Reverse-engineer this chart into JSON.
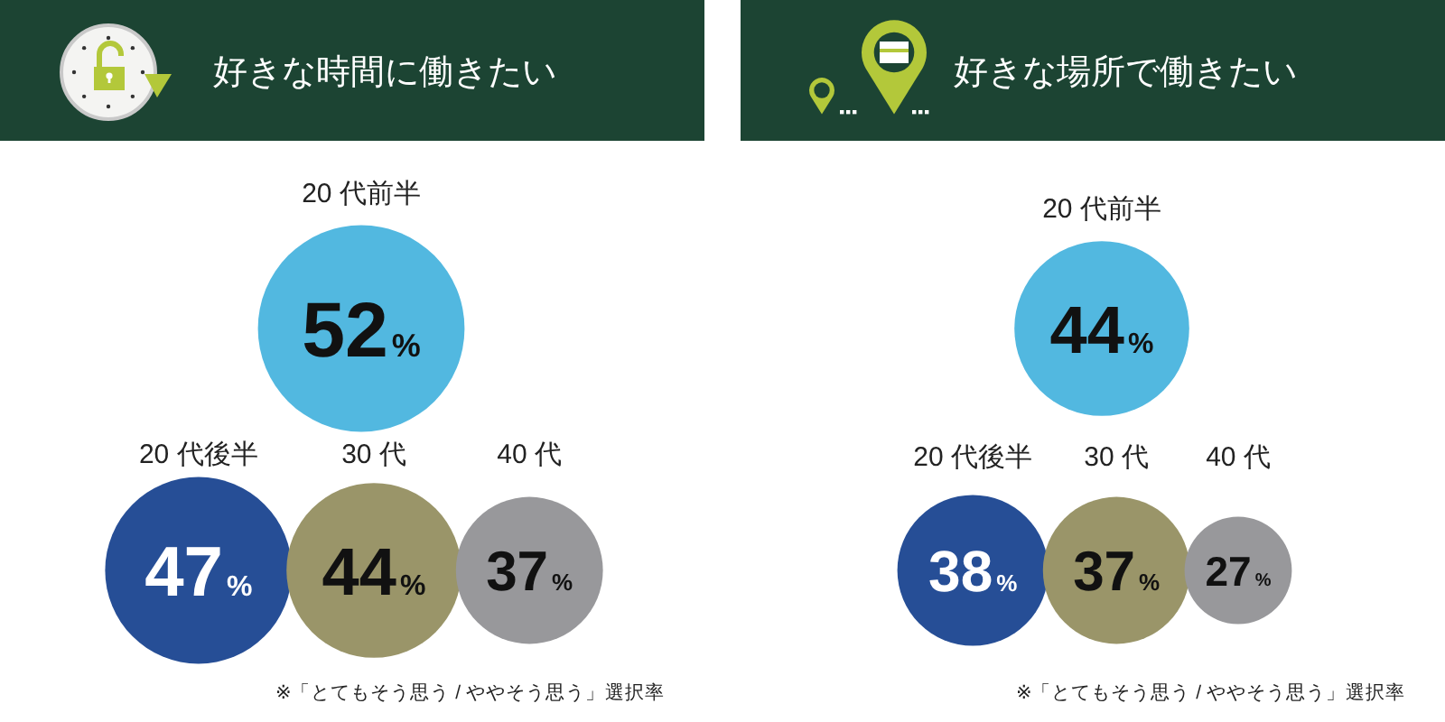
{
  "chart_data": [
    {
      "type": "other",
      "title": "好きな時間に働きたい",
      "categories": [
        "20 代前半",
        "20 代後半",
        "30 代",
        "40 代"
      ],
      "values": [
        52,
        47,
        44,
        37
      ],
      "colors": [
        "#52b8e0",
        "#264e96",
        "#9a9569",
        "#98989b"
      ],
      "value_labels": [
        "52%",
        "47%",
        "44%",
        "37%"
      ],
      "annotations": [
        "※「とてもそう思う / ややそう思う」選択率"
      ]
    },
    {
      "type": "other",
      "title": "好きな場所で働きたい",
      "categories": [
        "20 代前半",
        "20 代後半",
        "30 代",
        "40 代"
      ],
      "values": [
        44,
        38,
        37,
        27
      ],
      "colors": [
        "#52b8e0",
        "#264e96",
        "#9a9569",
        "#98989b"
      ],
      "value_labels": [
        "44%",
        "38%",
        "37%",
        "27%"
      ],
      "annotations": [
        "※「とてもそう思う / ややそう思う」選択率"
      ]
    }
  ]
}
